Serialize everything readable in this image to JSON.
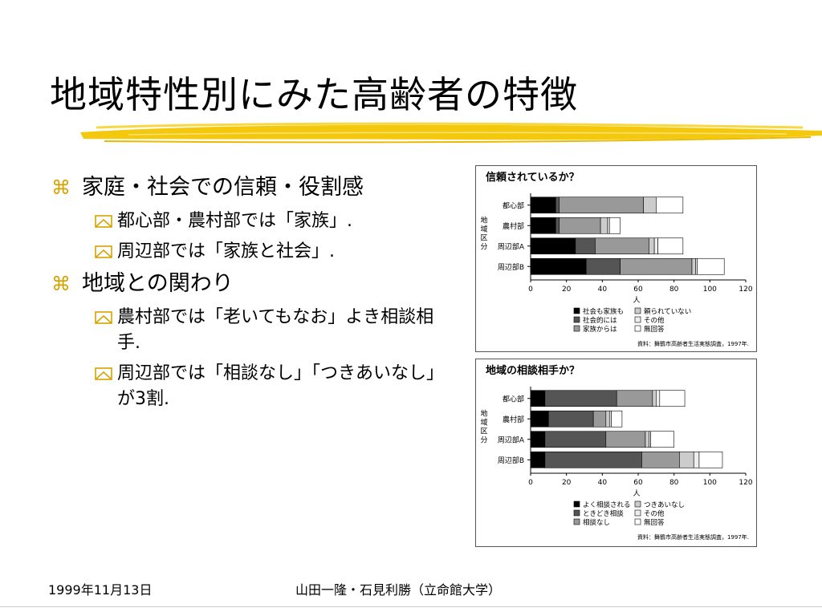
{
  "slide": {
    "title": "地域特性別にみた高齢者の特徴",
    "accent_color": "#f0c400"
  },
  "bullets": [
    {
      "text": "家庭・社会での信頼・役割感",
      "icon": "command-icon",
      "sub": [
        "都心部・農村部では「家族」.",
        "周辺部では「家族と社会」."
      ]
    },
    {
      "text": "地域との関わり",
      "icon": "command-icon",
      "sub": [
        "農村部では「老いてもなお」よき相談相手.",
        "周辺部では「相談なし」「つきあいなし」が3割."
      ]
    }
  ],
  "chart_data": [
    {
      "type": "bar",
      "orientation": "horizontal",
      "stacked": true,
      "title": "信頼されているか？",
      "xlabel": "人",
      "ylabel": "地域区分",
      "xlim": [
        0,
        120
      ],
      "xticks": [
        0,
        20,
        40,
        60,
        80,
        100,
        120
      ],
      "categories": [
        "都心部",
        "農村部",
        "周辺部A",
        "周辺部B"
      ],
      "series": [
        {
          "name": "社会も家族も",
          "color": "#000000",
          "values": [
            14,
            14,
            25,
            31
          ]
        },
        {
          "name": "社会的には",
          "color": "#555555",
          "values": [
            2,
            2,
            11,
            19
          ]
        },
        {
          "name": "家族からは",
          "color": "#999999",
          "values": [
            47,
            23,
            30,
            40
          ]
        },
        {
          "name": "頼られていない",
          "color": "#cccccc",
          "values": [
            7,
            4,
            3,
            2
          ]
        },
        {
          "name": "その他",
          "color": "#eeeeee",
          "values": [
            0,
            1,
            2,
            1
          ]
        },
        {
          "name": "無回答",
          "color": "#ffffff",
          "values": [
            15,
            6,
            14,
            15
          ]
        }
      ],
      "source": "資料：舞鶴市高齢者生活実態調査，1997年."
    },
    {
      "type": "bar",
      "orientation": "horizontal",
      "stacked": true,
      "title": "地域の相談相手か？",
      "xlabel": "人",
      "ylabel": "地域区分",
      "xlim": [
        0,
        120
      ],
      "xticks": [
        0,
        20,
        40,
        60,
        80,
        100,
        120
      ],
      "categories": [
        "都心部",
        "農村部",
        "周辺部A",
        "周辺部B"
      ],
      "series": [
        {
          "name": "よく相談される",
          "color": "#000000",
          "values": [
            8,
            10,
            8,
            8
          ]
        },
        {
          "name": "ときどき相談",
          "color": "#555555",
          "values": [
            40,
            25,
            34,
            54
          ]
        },
        {
          "name": "相談なし",
          "color": "#999999",
          "values": [
            20,
            7,
            22,
            21
          ]
        },
        {
          "name": "つきあいなし",
          "color": "#cccccc",
          "values": [
            2,
            2,
            2,
            8
          ]
        },
        {
          "name": "その他",
          "color": "#eeeeee",
          "values": [
            2,
            1,
            1,
            3
          ]
        },
        {
          "name": "無回答",
          "color": "#ffffff",
          "values": [
            14,
            6,
            13,
            13
          ]
        }
      ],
      "source": "資料：舞鶴市高齢者生活実態調査，1997年."
    }
  ],
  "footer": {
    "date": "1999年11月13日",
    "authors": "山田一隆・石見利勝（立命館大学）"
  }
}
